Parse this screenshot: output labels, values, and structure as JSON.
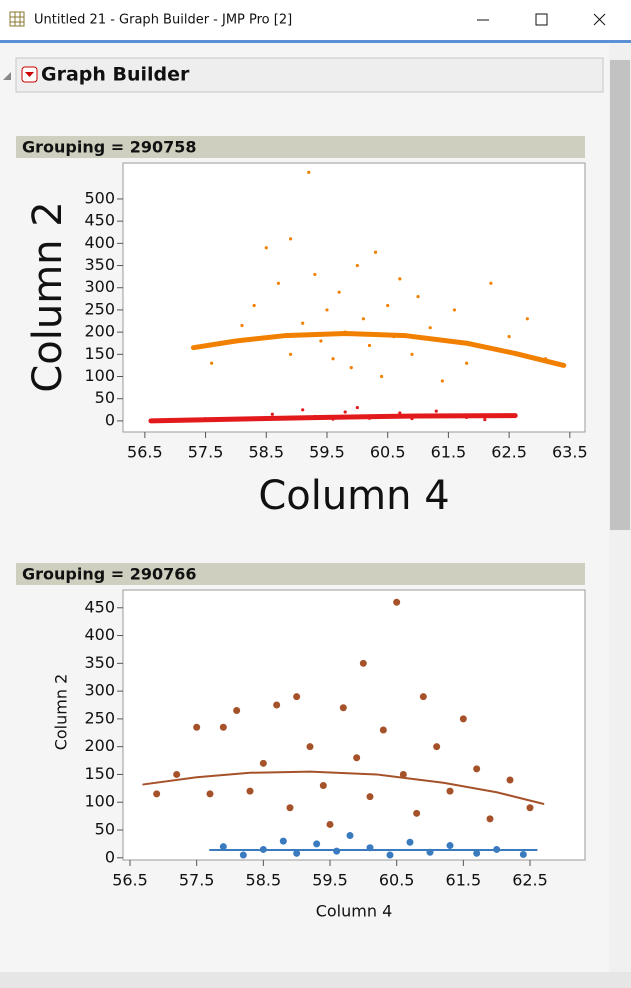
{
  "window": {
    "title": "Untitled 21 - Graph Builder - JMP Pro [2]"
  },
  "header": {
    "title": "Graph Builder"
  },
  "chart_data": [
    {
      "type": "scatter",
      "title": "Grouping = 290758",
      "x_label": "Column 4",
      "y_label": "Column 2",
      "xlim": [
        56.14,
        63.75
      ],
      "ylim": [
        -25,
        581
      ],
      "xticks": [
        56.5,
        57.5,
        58.5,
        59.5,
        60.5,
        61.5,
        62.5,
        63.5
      ],
      "yticks": [
        0,
        50,
        100,
        150,
        200,
        250,
        300,
        350,
        400,
        450,
        500
      ],
      "series": [
        {
          "color": "#f28000",
          "x": [
            57.6,
            58.1,
            58.3,
            58.5,
            58.7,
            58.9,
            58.9,
            59.1,
            59.2,
            59.3,
            59.4,
            59.5,
            59.6,
            59.7,
            59.8,
            59.9,
            60.0,
            60.1,
            60.2,
            60.3,
            60.4,
            60.5,
            60.6,
            60.7,
            60.9,
            61.0,
            61.2,
            61.4,
            61.6,
            61.8,
            62.2,
            62.5,
            62.8,
            63.1
          ],
          "values": [
            130,
            215,
            260,
            390,
            310,
            410,
            150,
            220,
            560,
            330,
            180,
            250,
            140,
            290,
            200,
            120,
            350,
            230,
            170,
            380,
            100,
            260,
            190,
            320,
            150,
            280,
            210,
            90,
            250,
            130,
            310,
            190,
            230,
            140
          ]
        },
        {
          "color": "#e31a1c",
          "x": [
            57.5,
            58.2,
            58.6,
            58.9,
            59.1,
            59.3,
            59.6,
            59.8,
            60.0,
            60.2,
            60.4,
            60.7,
            60.9,
            61.3,
            61.8,
            62.1,
            62.5
          ],
          "values": [
            5,
            3,
            15,
            8,
            25,
            10,
            4,
            20,
            30,
            6,
            12,
            18,
            5,
            22,
            8,
            3,
            10
          ]
        }
      ],
      "fits": [
        {
          "color": "#f28000",
          "x": [
            57.3,
            58.0,
            58.8,
            59.8,
            60.8,
            61.8,
            62.6,
            63.4
          ],
          "values": [
            165,
            180,
            192,
            197,
            192,
            175,
            152,
            125
          ]
        },
        {
          "color": "#e31a1c",
          "x": [
            56.6,
            58.0,
            59.5,
            61.0,
            62.6
          ],
          "values": [
            0,
            4,
            8,
            11,
            12
          ]
        }
      ]
    },
    {
      "type": "scatter",
      "title": "Grouping = 290766",
      "x_label": "Column 4",
      "y_label": "Column 2",
      "xlim": [
        56.395,
        63.325
      ],
      "ylim": [
        -4,
        482
      ],
      "xticks": [
        56.5,
        57.5,
        58.5,
        59.5,
        60.5,
        61.5,
        62.5
      ],
      "yticks": [
        0,
        50,
        100,
        150,
        200,
        250,
        300,
        350,
        400,
        450
      ],
      "series": [
        {
          "color": "#a5522a",
          "x": [
            56.9,
            57.2,
            57.5,
            57.7,
            57.9,
            58.1,
            58.3,
            58.5,
            58.7,
            58.9,
            59.0,
            59.2,
            59.4,
            59.5,
            59.7,
            59.9,
            60.0,
            60.1,
            60.3,
            60.5,
            60.6,
            60.8,
            60.9,
            61.1,
            61.3,
            61.5,
            61.7,
            61.9,
            62.2,
            62.5
          ],
          "values": [
            115,
            150,
            235,
            115,
            235,
            265,
            120,
            170,
            275,
            90,
            290,
            200,
            130,
            60,
            270,
            180,
            350,
            110,
            230,
            460,
            150,
            80,
            290,
            200,
            120,
            250,
            160,
            70,
            140,
            90
          ]
        },
        {
          "color": "#3a7bbf",
          "x": [
            57.9,
            58.2,
            58.5,
            58.8,
            59.0,
            59.3,
            59.6,
            59.8,
            60.1,
            60.4,
            60.7,
            61.0,
            61.3,
            61.7,
            62.0,
            62.4
          ],
          "values": [
            20,
            5,
            15,
            30,
            8,
            25,
            12,
            40,
            18,
            5,
            28,
            10,
            22,
            8,
            15,
            6
          ]
        }
      ],
      "fits": [
        {
          "color": "#a5522a",
          "x": [
            56.7,
            57.5,
            58.3,
            59.2,
            60.2,
            61.2,
            62.0,
            62.7
          ],
          "values": [
            132,
            145,
            153,
            155,
            150,
            135,
            118,
            97
          ]
        },
        {
          "color": "#3a7bbf",
          "x": [
            57.7,
            59.5,
            61.0,
            62.6
          ],
          "values": [
            14,
            14,
            14,
            14
          ]
        }
      ]
    }
  ]
}
